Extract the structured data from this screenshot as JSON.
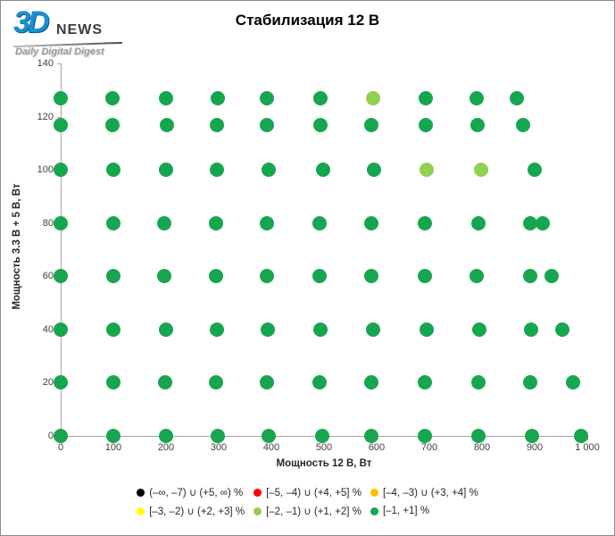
{
  "logo": {
    "part1": "3D",
    "part2": "NEWS",
    "tagline": "Daily Digital Digest"
  },
  "title": "Стабилизация 12 В",
  "chart_data": {
    "type": "scatter",
    "title": "Стабилизация 12 В",
    "xlabel": "Мощность 12 В, Вт",
    "ylabel": "Мощность  3.3 В + 5 В, Вт",
    "xlim": [
      0,
      1000
    ],
    "ylim": [
      0,
      140
    ],
    "grid": false,
    "legend_position": "bottom",
    "x_ticks": [
      0,
      100,
      200,
      300,
      400,
      500,
      600,
      700,
      800,
      900,
      1000
    ],
    "x_tick_labels": [
      "0",
      "100",
      "200",
      "300",
      "400",
      "500",
      "600",
      "700",
      "800",
      "900",
      "1 000"
    ],
    "y_ticks": [
      0,
      20,
      40,
      60,
      80,
      100,
      120,
      140
    ],
    "y_tick_labels": [
      "0",
      "20",
      "40",
      "60",
      "80",
      "100",
      "120",
      "140"
    ],
    "series": [
      {
        "name": "[–1, +1] %",
        "color": "#17a650",
        "points": [
          [
            0,
            127
          ],
          [
            98,
            127
          ],
          [
            200,
            127
          ],
          [
            298,
            127
          ],
          [
            392,
            127
          ],
          [
            493,
            127
          ],
          [
            693,
            127
          ],
          [
            790,
            127
          ],
          [
            866,
            127
          ],
          [
            0,
            117
          ],
          [
            98,
            117
          ],
          [
            202,
            117
          ],
          [
            297,
            117
          ],
          [
            392,
            117
          ],
          [
            493,
            117
          ],
          [
            590,
            117
          ],
          [
            693,
            117
          ],
          [
            791,
            117
          ],
          [
            878,
            117
          ],
          [
            0,
            100
          ],
          [
            100,
            100
          ],
          [
            200,
            100
          ],
          [
            297,
            100
          ],
          [
            395,
            100
          ],
          [
            498,
            100
          ],
          [
            595,
            100
          ],
          [
            900,
            100
          ],
          [
            0,
            80
          ],
          [
            100,
            80
          ],
          [
            197,
            80
          ],
          [
            295,
            80
          ],
          [
            391,
            80
          ],
          [
            491,
            80
          ],
          [
            590,
            80
          ],
          [
            691,
            80
          ],
          [
            793,
            80
          ],
          [
            891,
            80
          ],
          [
            915,
            80
          ],
          [
            0,
            60
          ],
          [
            100,
            60
          ],
          [
            197,
            60
          ],
          [
            295,
            60
          ],
          [
            391,
            60
          ],
          [
            491,
            60
          ],
          [
            590,
            60
          ],
          [
            691,
            60
          ],
          [
            790,
            60
          ],
          [
            891,
            60
          ],
          [
            933,
            60
          ],
          [
            0,
            40
          ],
          [
            100,
            40
          ],
          [
            200,
            40
          ],
          [
            297,
            40
          ],
          [
            393,
            40
          ],
          [
            493,
            40
          ],
          [
            593,
            40
          ],
          [
            695,
            40
          ],
          [
            795,
            40
          ],
          [
            894,
            40
          ],
          [
            953,
            40
          ],
          [
            0,
            20
          ],
          [
            100,
            20
          ],
          [
            198,
            20
          ],
          [
            295,
            20
          ],
          [
            391,
            20
          ],
          [
            491,
            20
          ],
          [
            590,
            20
          ],
          [
            691,
            20
          ],
          [
            793,
            20
          ],
          [
            891,
            20
          ],
          [
            973,
            20
          ],
          [
            0,
            0
          ],
          [
            100,
            0
          ],
          [
            200,
            0
          ],
          [
            298,
            0
          ],
          [
            395,
            0
          ],
          [
            497,
            0
          ],
          [
            590,
            0
          ],
          [
            691,
            0
          ],
          [
            793,
            0
          ],
          [
            895,
            0
          ],
          [
            988,
            0
          ]
        ]
      },
      {
        "name": "[–2, –1) ∪ (+1, +2] %",
        "color": "#92d050",
        "points": [
          [
            593,
            127
          ],
          [
            695,
            100
          ],
          [
            798,
            100
          ]
        ]
      }
    ],
    "legend": [
      {
        "label": "(–∞, –7) ∪ (+5, ∞) %",
        "color": "#000000"
      },
      {
        "label": "[–5, –4) ∪ (+4, +5] %",
        "color": "#fe0000"
      },
      {
        "label": "[–4, –3) ∪ (+3, +4] %",
        "color": "#ffc000"
      },
      {
        "label": "[–3, –2) ∪ (+2, +3] %",
        "color": "#ffff00"
      },
      {
        "label": "[–2, –1) ∪ (+1, +2] %",
        "color": "#92d050"
      },
      {
        "label": "[–1, +1] %",
        "color": "#17a650"
      }
    ]
  }
}
